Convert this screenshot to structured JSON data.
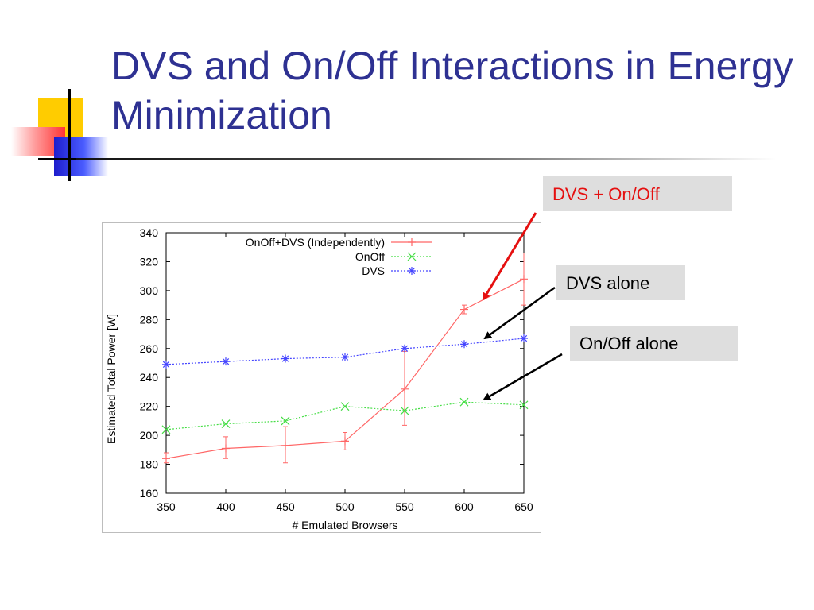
{
  "slide": {
    "title": "DVS and On/Off Interactions in Energy Minimization"
  },
  "callouts": {
    "dvs_onoff": "DVS + On/Off",
    "dvs_alone": "DVS alone",
    "onoff_alone": "On/Off alone"
  },
  "colors": {
    "title": "#2e3192",
    "callout_red": "#e51010",
    "onoff_dvs_series": "#ff6666",
    "onoff_series": "#44dd44",
    "dvs_series": "#4444ff"
  },
  "chart_data": {
    "type": "line",
    "title": "",
    "xlabel": "# Emulated Browsers",
    "ylabel": "Estimated Total Power [W]",
    "x": [
      350,
      400,
      450,
      500,
      550,
      600,
      650
    ],
    "xticks": [
      350,
      400,
      450,
      500,
      550,
      600,
      650
    ],
    "yticks": [
      160,
      180,
      200,
      220,
      240,
      260,
      280,
      300,
      320,
      340
    ],
    "xlim": [
      350,
      650
    ],
    "ylim": [
      160,
      340
    ],
    "legend_position": "top-right",
    "grid": false,
    "series": [
      {
        "name": "OnOff+DVS (Independently)",
        "marker": "plus",
        "values": [
          184,
          191,
          193,
          196,
          232,
          287,
          308
        ],
        "error_low": [
          181,
          184,
          181,
          190,
          207,
          284,
          290
        ],
        "error_high": [
          188,
          199,
          206,
          202,
          258,
          290,
          326
        ]
      },
      {
        "name": "OnOff",
        "marker": "x",
        "values": [
          204,
          208,
          210,
          220,
          217,
          223,
          221
        ]
      },
      {
        "name": "DVS",
        "marker": "star",
        "values": [
          249,
          251,
          253,
          254,
          260,
          263,
          267
        ]
      }
    ]
  }
}
